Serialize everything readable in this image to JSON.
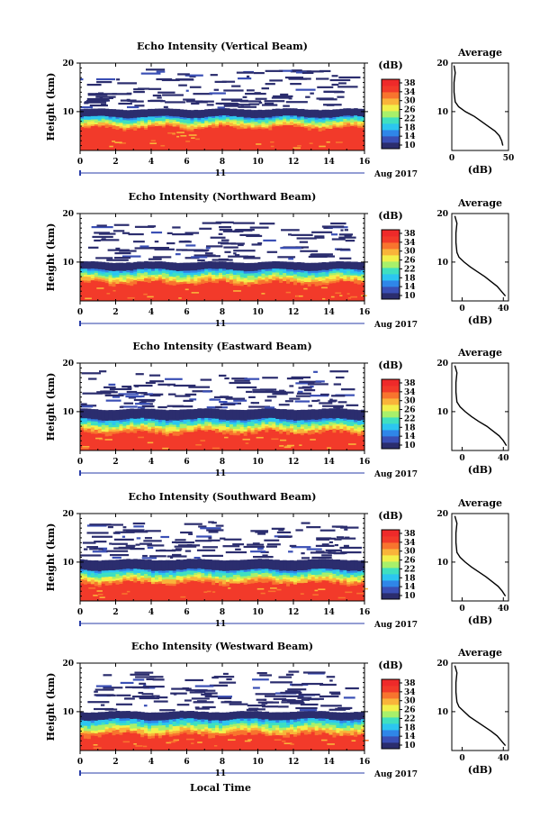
{
  "figure": {
    "xlabel": "Local Time",
    "date_label": "Aug 2017",
    "day_label": "11"
  },
  "colorbar": {
    "label": "(dB)",
    "ticks": [
      "38",
      "34",
      "30",
      "26",
      "22",
      "18",
      "14",
      "10"
    ],
    "range": [
      10,
      38
    ],
    "colors": [
      "#2b2d6e",
      "#3a4fb5",
      "#2f86e8",
      "#2cc6f0",
      "#3fe0c0",
      "#a8f06a",
      "#f2f04a",
      "#f9b43a",
      "#f8742e",
      "#f23a2a",
      "#ee2a2a"
    ]
  },
  "chart_data": [
    {
      "type": "heatmap",
      "title": "Echo Intensity (Vertical Beam)",
      "ylabel": "Height (km)",
      "xlim": [
        0,
        16
      ],
      "ylim": [
        2,
        20
      ],
      "xticks": [
        "0",
        "2",
        "4",
        "6",
        "8",
        "10",
        "12",
        "14",
        "16"
      ],
      "yticks": [
        "20",
        "10"
      ],
      "layers": {
        "red_top": 6.5,
        "jet_top": 9.0,
        "blue_top": 10.5,
        "sparse_top": 19.0
      },
      "profile": {
        "title": "Average",
        "xlabel": "(dB)",
        "xlim": [
          0,
          50
        ],
        "xticks": [
          "0",
          "50"
        ],
        "yticks": [
          "20",
          "10"
        ],
        "heights": [
          3,
          4,
          5,
          6,
          7,
          8,
          9,
          10,
          11,
          12,
          14,
          16,
          18,
          19.5
        ],
        "values": [
          45,
          44,
          42,
          38,
          32,
          26,
          20,
          12,
          6,
          3,
          2,
          2,
          3,
          2
        ]
      }
    },
    {
      "type": "heatmap",
      "title": "Echo Intensity (Northward Beam)",
      "ylabel": "Height (km)",
      "xlim": [
        0,
        16
      ],
      "ylim": [
        2,
        20
      ],
      "xticks": [
        "0",
        "2",
        "4",
        "6",
        "8",
        "10",
        "12",
        "14",
        "16"
      ],
      "yticks": [
        "20",
        "10"
      ],
      "layers": {
        "red_top": 5.5,
        "jet_top": 8.5,
        "blue_top": 10.0,
        "sparse_top": 18.5
      },
      "profile": {
        "title": "Average",
        "xlabel": "(dB)",
        "xlim": [
          -10,
          45
        ],
        "xticks": [
          "0",
          "40"
        ],
        "yticks": [
          "20",
          "10"
        ],
        "heights": [
          3,
          4,
          5,
          6,
          7,
          8,
          9,
          10,
          11,
          12,
          14,
          16,
          18,
          19.5
        ],
        "values": [
          42,
          38,
          34,
          28,
          22,
          15,
          8,
          2,
          -3,
          -5,
          -6,
          -6,
          -5,
          -7
        ]
      }
    },
    {
      "type": "heatmap",
      "title": "Echo Intensity (Eastward Beam)",
      "ylabel": "Height (km)",
      "xlim": [
        0,
        16
      ],
      "ylim": [
        2,
        20
      ],
      "xticks": [
        "0",
        "2",
        "4",
        "6",
        "8",
        "10",
        "12",
        "14",
        "16"
      ],
      "yticks": [
        "20",
        "10"
      ],
      "layers": {
        "red_top": 5.5,
        "jet_top": 8.5,
        "blue_top": 10.5,
        "sparse_top": 18.5
      },
      "profile": {
        "title": "Average",
        "xlabel": "(dB)",
        "xlim": [
          -10,
          45
        ],
        "xticks": [
          "0",
          "40"
        ],
        "yticks": [
          "20",
          "10"
        ],
        "heights": [
          3,
          4,
          5,
          6,
          7,
          8,
          9,
          10,
          11,
          12,
          14,
          16,
          18,
          19.5
        ],
        "values": [
          43,
          40,
          36,
          30,
          24,
          16,
          9,
          3,
          -2,
          -5,
          -6,
          -6,
          -5,
          -7
        ]
      }
    },
    {
      "type": "heatmap",
      "title": "Echo Intensity (Southward Beam)",
      "ylabel": "Height (km)",
      "xlim": [
        0,
        16
      ],
      "ylim": [
        2,
        20
      ],
      "xticks": [
        "0",
        "2",
        "4",
        "6",
        "8",
        "10",
        "12",
        "14",
        "16"
      ],
      "yticks": [
        "20",
        "10"
      ],
      "layers": {
        "red_top": 5.5,
        "jet_top": 8.5,
        "blue_top": 10.5,
        "sparse_top": 18.5
      },
      "profile": {
        "title": "Average",
        "xlabel": "(dB)",
        "xlim": [
          -10,
          45
        ],
        "xticks": [
          "0",
          "40"
        ],
        "yticks": [
          "20",
          "10"
        ],
        "heights": [
          3,
          4,
          5,
          6,
          7,
          8,
          9,
          10,
          11,
          12,
          14,
          16,
          18,
          19.5
        ],
        "values": [
          42,
          39,
          35,
          29,
          23,
          16,
          9,
          3,
          -2,
          -5,
          -6,
          -6,
          -5,
          -7
        ]
      }
    },
    {
      "type": "heatmap",
      "title": "Echo Intensity (Westward Beam)",
      "ylabel": "Height (km)",
      "xlim": [
        0,
        16
      ],
      "ylim": [
        2,
        20
      ],
      "xticks": [
        "0",
        "2",
        "4",
        "6",
        "8",
        "10",
        "12",
        "14",
        "16"
      ],
      "yticks": [
        "20",
        "10"
      ],
      "layers": {
        "red_top": 5.0,
        "jet_top": 8.5,
        "blue_top": 10.0,
        "sparse_top": 18.5
      },
      "profile": {
        "title": "Average",
        "xlabel": "(dB)",
        "xlim": [
          -10,
          45
        ],
        "xticks": [
          "0",
          "40"
        ],
        "yticks": [
          "20",
          "10"
        ],
        "heights": [
          3,
          4,
          5,
          6,
          7,
          8,
          9,
          10,
          11,
          12,
          14,
          16,
          18,
          19.5
        ],
        "values": [
          42,
          38,
          34,
          28,
          21,
          14,
          7,
          2,
          -3,
          -5,
          -6,
          -6,
          -5,
          -7
        ]
      }
    }
  ]
}
